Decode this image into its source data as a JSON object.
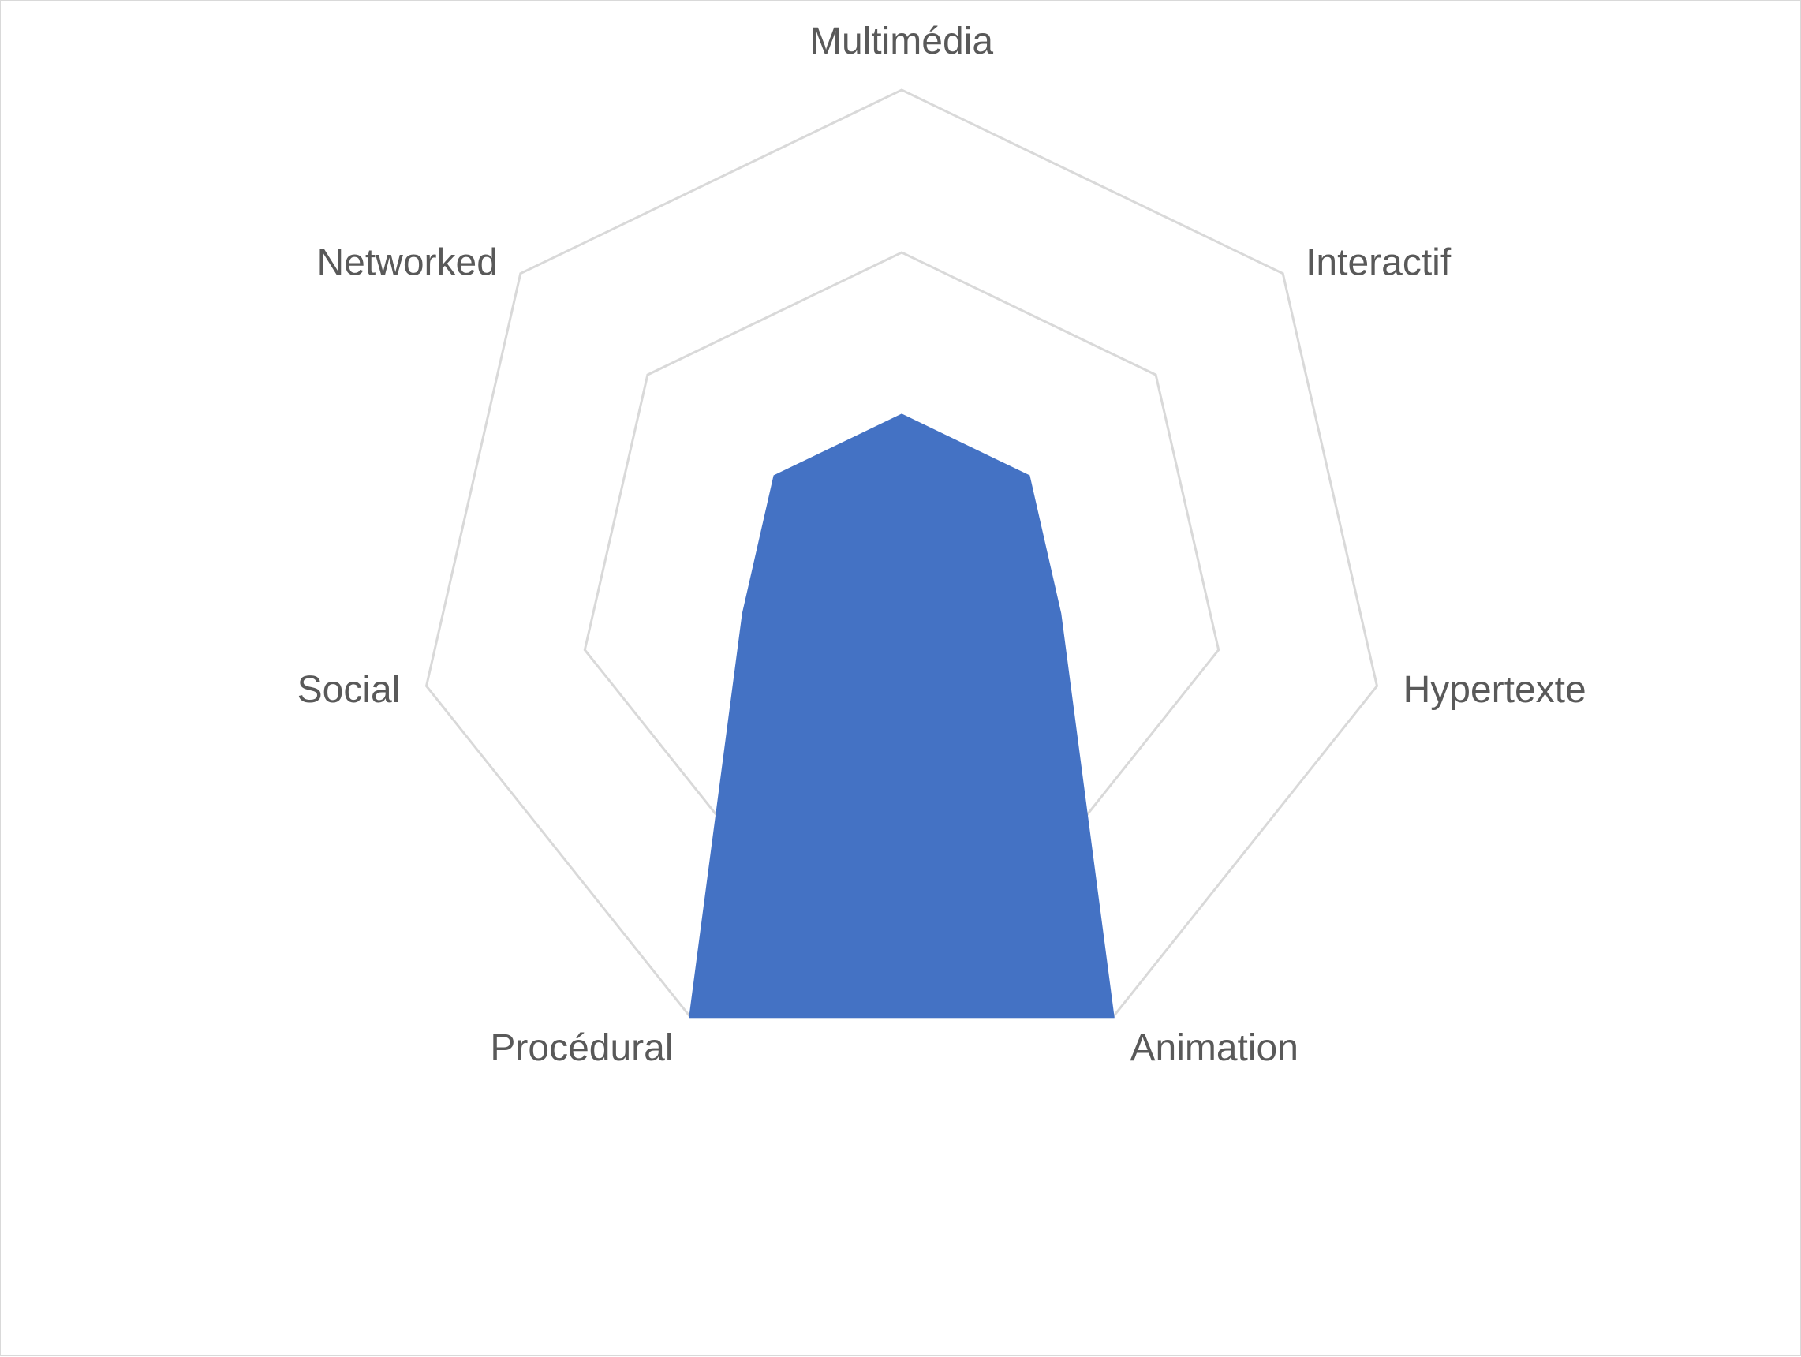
{
  "chart_data": {
    "type": "radar",
    "title": "",
    "categories": [
      "Multimédia",
      "Interactif",
      "Hypertexte",
      "Animation",
      "Procédural",
      "Social",
      "Networked"
    ],
    "series": [
      {
        "values": [
          1,
          1,
          1,
          3,
          3,
          1,
          1
        ],
        "color": "#4472c4"
      }
    ],
    "rlim": [
      0,
      3
    ],
    "grid_rings": [
      2,
      3
    ],
    "grid_color": "#d9d9d9",
    "label_color": "#595959",
    "legend": "none"
  }
}
